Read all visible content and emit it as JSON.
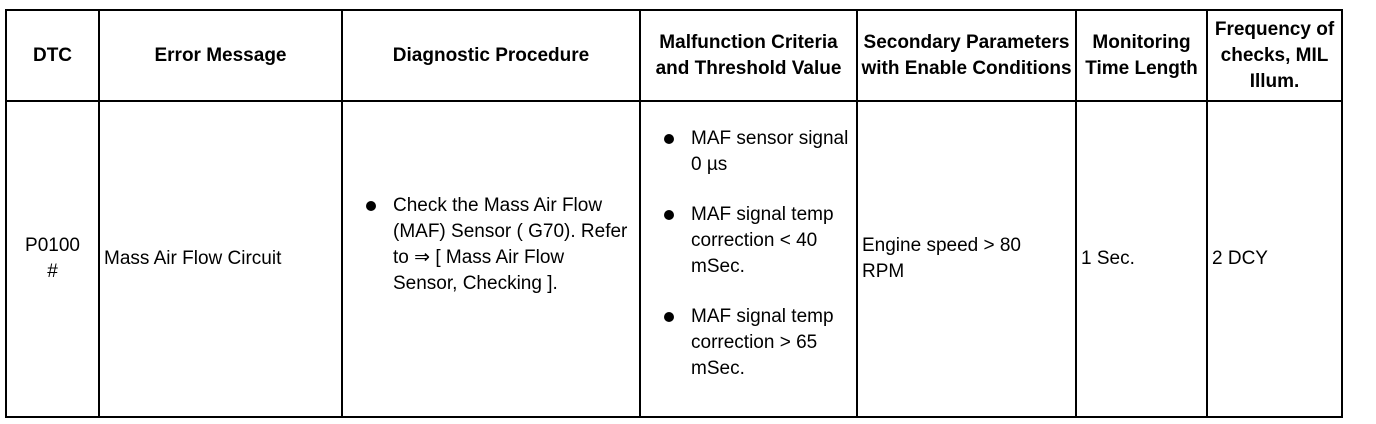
{
  "headers": {
    "dtc": "DTC",
    "error_message": "Error Message",
    "diagnostic_procedure": "Diagnostic Procedure",
    "malfunction_criteria": "Malfunction Criteria and Threshold Value",
    "secondary_parameters": "Secondary Parameters with Enable Conditions",
    "monitoring_time": "Monitoring Time Length",
    "frequency": "Frequency of checks, MIL Illum."
  },
  "row": {
    "dtc": "P0100 #",
    "error_message": "Mass Air Flow Circuit",
    "diagnostic_procedure": "Check the Mass Air Flow (MAF) Sensor ( G70). Refer to ⇒ [ Mass Air Flow Sensor, Checking ].",
    "malfunction_criteria": [
      "MAF sensor signal 0 µs",
      "MAF signal temp correction < 40 mSec.",
      "MAF signal temp correction > 65 mSec."
    ],
    "secondary_parameters": "Engine speed > 80 RPM",
    "monitoring_time": "1 Sec.",
    "frequency": "2 DCY"
  }
}
